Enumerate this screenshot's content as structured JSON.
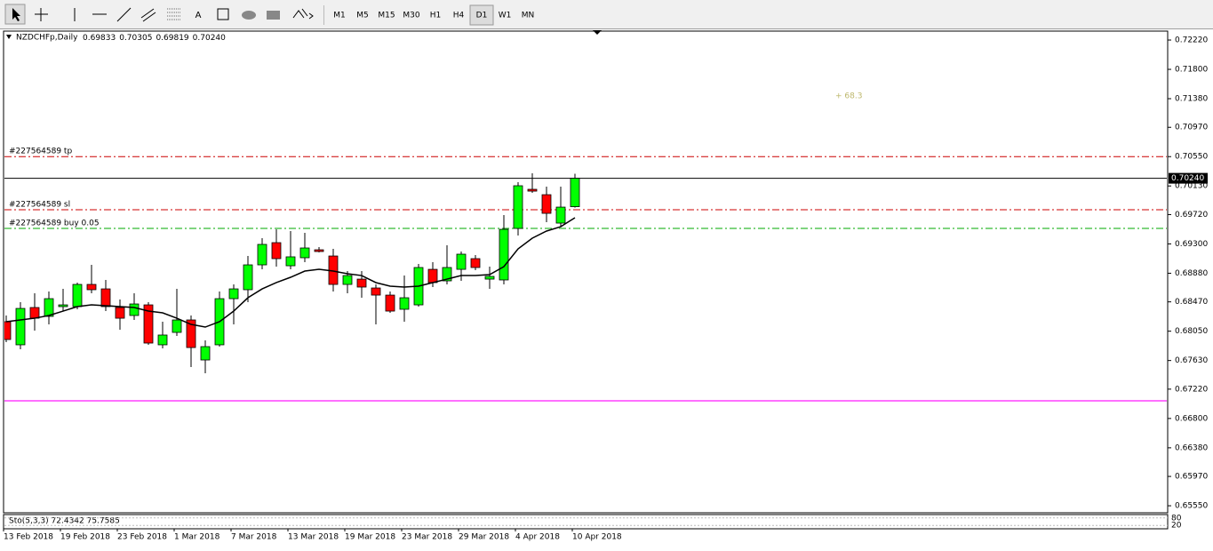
{
  "toolbar": {
    "text_icon": "A",
    "timeframes": [
      "M1",
      "M5",
      "M15",
      "M30",
      "H1",
      "H4",
      "D1",
      "W1",
      "MN"
    ],
    "active_index": 6
  },
  "chart_data": {
    "type": "candlestick",
    "title": "NZDCHFp,Daily",
    "last_bar_labels": [
      "0.69833",
      "0.70305",
      "0.69819",
      "0.70240"
    ],
    "annotation": "+ 68.3",
    "annotation_color": "#bdb76b",
    "categories": [
      "13 Feb 2018",
      null,
      null,
      null,
      "19 Feb 2018",
      null,
      null,
      null,
      "23 Feb 2018",
      null,
      null,
      null,
      "1 Mar 2018",
      null,
      null,
      null,
      "7 Mar 2018",
      null,
      null,
      null,
      "13 Mar 2018",
      null,
      null,
      null,
      "19 Mar 2018",
      null,
      null,
      null,
      "23 Mar 2018",
      null,
      null,
      null,
      "29 Mar 2018",
      null,
      null,
      null,
      "4 Apr 2018",
      null,
      null,
      null,
      "10 Apr 2018"
    ],
    "open": [
      0.68186,
      0.67855,
      0.68389,
      0.68262,
      0.68402,
      0.68402,
      0.6872,
      0.68656,
      0.68389,
      0.68275,
      0.68427,
      0.67855,
      0.68033,
      0.68211,
      0.67638,
      0.67855,
      0.68516,
      0.68644,
      0.69,
      0.69318,
      0.68987,
      0.69102,
      0.69216,
      0.69127,
      0.6872,
      0.68796,
      0.68669,
      0.68567,
      0.68364,
      0.68427,
      0.68936,
      0.68771,
      0.68936,
      0.69089,
      0.68796,
      0.68784,
      0.69522,
      0.70082,
      0.70005,
      0.69598,
      0.69833
    ],
    "high": [
      0.68275,
      0.68465,
      0.68593,
      0.68618,
      0.68656,
      0.68746,
      0.69,
      0.68784,
      0.68504,
      0.68593,
      0.68465,
      0.68186,
      0.68656,
      0.68275,
      0.67918,
      0.68618,
      0.6872,
      0.69127,
      0.69382,
      0.69509,
      0.69484,
      0.69458,
      0.69255,
      0.69229,
      0.68911,
      0.68911,
      0.6872,
      0.68618,
      0.68847,
      0.69013,
      0.69038,
      0.6928,
      0.69191,
      0.6914,
      0.68975,
      0.69713,
      0.70184,
      0.70311,
      0.7012,
      0.7012,
      0.70305
    ],
    "low": [
      0.67893,
      0.67791,
      0.68058,
      0.68147,
      0.68338,
      0.68364,
      0.68593,
      0.68338,
      0.68071,
      0.68211,
      0.67855,
      0.67804,
      0.67982,
      0.67536,
      0.67447,
      0.67829,
      0.68147,
      0.68465,
      0.68936,
      0.68975,
      0.68936,
      0.69038,
      0.69178,
      0.68618,
      0.68593,
      0.68529,
      0.68147,
      0.68313,
      0.68186,
      0.68402,
      0.68682,
      0.6872,
      0.68771,
      0.68924,
      0.68656,
      0.6872,
      0.6942,
      0.70031,
      0.69611,
      0.69547,
      0.69819
    ],
    "close": [
      0.67931,
      0.68376,
      0.68236,
      0.68516,
      0.68427,
      0.6872,
      0.68644,
      0.68402,
      0.68236,
      0.6844,
      0.6788,
      0.67995,
      0.68211,
      0.67816,
      0.67829,
      0.68516,
      0.68656,
      0.69,
      0.69293,
      0.69089,
      0.69115,
      0.69242,
      0.69191,
      0.6872,
      0.68847,
      0.68682,
      0.68567,
      0.68338,
      0.68529,
      0.68962,
      0.68746,
      0.68962,
      0.69153,
      0.68962,
      0.68835,
      0.69509,
      0.70133,
      0.70056,
      0.69738,
      0.69827,
      0.7024
    ],
    "up_color": "#00ff00",
    "down_color": "#ff0000",
    "ma": {
      "color": "#000000",
      "values": [
        0.68186,
        0.68211,
        0.68236,
        0.68275,
        0.68338,
        0.68402,
        0.68427,
        0.68415,
        0.68402,
        0.68389,
        0.68338,
        0.68313,
        0.68236,
        0.68147,
        0.68109,
        0.68186,
        0.68338,
        0.68529,
        0.68656,
        0.68746,
        0.68822,
        0.68911,
        0.68936,
        0.68911,
        0.68873,
        0.68847,
        0.68746,
        0.68695,
        0.68682,
        0.68695,
        0.68746,
        0.68796,
        0.68847,
        0.68847,
        0.6886,
        0.68975,
        0.69229,
        0.69382,
        0.69484,
        0.69547,
        0.69675
      ]
    },
    "levels": [
      {
        "label": "#227564589 tp",
        "value": 0.7055,
        "color": "#cc0000"
      },
      {
        "label": "#227564589 sl",
        "value": 0.69789,
        "color": "#cc0000"
      },
      {
        "label": "#227564589 buy 0.05",
        "value": 0.69522,
        "color": "#00aa00"
      }
    ],
    "support_line": {
      "value": 0.67053,
      "color": "#ff40ff"
    },
    "ylim": [
      0.65462,
      0.72335
    ],
    "yticks": [
      {
        "value": 0.7222,
        "label": "0.72220"
      },
      {
        "value": 0.718,
        "label": "0.71800"
      },
      {
        "value": 0.7138,
        "label": "0.71380"
      },
      {
        "value": 0.7097,
        "label": "0.70970"
      },
      {
        "value": 0.7055,
        "label": "0.70550"
      },
      {
        "value": 0.7013,
        "label": "0.70130"
      },
      {
        "value": 0.6972,
        "label": "0.69720"
      },
      {
        "value": 0.693,
        "label": "0.69300"
      },
      {
        "value": 0.6888,
        "label": "0.68880"
      },
      {
        "value": 0.6847,
        "label": "0.68470"
      },
      {
        "value": 0.6805,
        "label": "0.68050"
      },
      {
        "value": 0.6763,
        "label": "0.67630"
      },
      {
        "value": 0.6722,
        "label": "0.67220"
      },
      {
        "value": 0.668,
        "label": "0.66800"
      },
      {
        "value": 0.6638,
        "label": "0.66380"
      },
      {
        "value": 0.6597,
        "label": "0.65970"
      },
      {
        "value": 0.6555,
        "label": "0.65550"
      }
    ],
    "stochastic": {
      "label": "Sto(5,3,3) 72.4342 75.7585",
      "ylim": [
        0,
        100
      ],
      "levels": [
        80,
        20
      ]
    }
  }
}
